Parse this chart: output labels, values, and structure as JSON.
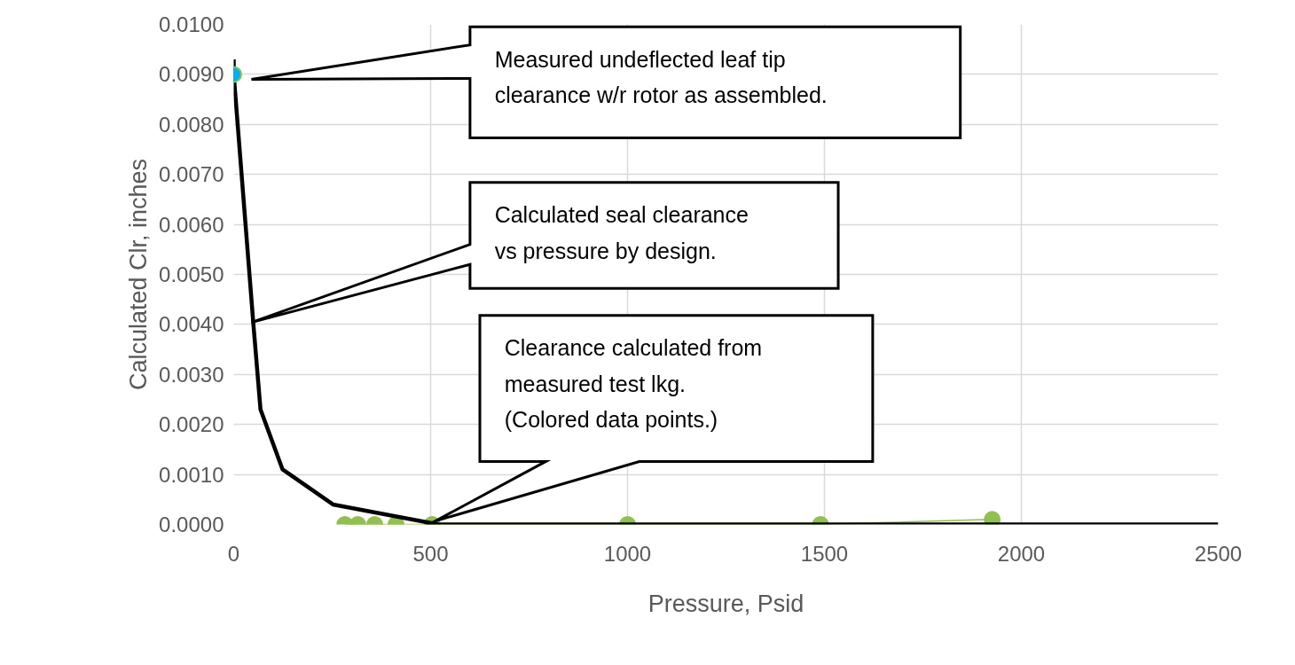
{
  "chart_data": {
    "type": "line",
    "xlabel": "Pressure, Psid",
    "ylabel": "Calculated Clr, inches",
    "xlim": [
      0,
      2500
    ],
    "xticks": [
      0,
      500,
      1000,
      1500,
      2000,
      2500
    ],
    "ylim": [
      0,
      0.01
    ],
    "yticks": [
      {
        "value": 0,
        "label": "0.0000"
      },
      {
        "value": 0.001,
        "label": "0.0010"
      },
      {
        "value": 0.002,
        "label": "0.0020"
      },
      {
        "value": 0.003,
        "label": "0.0030"
      },
      {
        "value": 0.004,
        "label": "0.0040"
      },
      {
        "value": 0.005,
        "label": "0.0050"
      },
      {
        "value": 0.006,
        "label": "0.0060"
      },
      {
        "value": 0.007,
        "label": "0.0070"
      },
      {
        "value": 0.008,
        "label": "0.0080"
      },
      {
        "value": 0.009,
        "label": "0.0090"
      },
      {
        "value": 0.01,
        "label": "0.0100"
      }
    ],
    "grid": true,
    "series": [
      {
        "color": "#92c050",
        "marker": "circle",
        "x": [
          282,
          315,
          358,
          412,
          504,
          1000,
          1490,
          1926
        ],
        "values": [
          0.0,
          0.0,
          0.0,
          0.0,
          0.0,
          0.0,
          0.0,
          0.0001
        ]
      },
      {
        "color": "#000000",
        "marker": "none",
        "x": [
          0,
          0,
          50,
          68,
          124,
          252,
          520,
          2500
        ],
        "values": [
          0.0093,
          0.009,
          0.004,
          0.0023,
          0.0011,
          0.0004,
          0.0,
          0.0
        ]
      },
      {
        "type": "scatter",
        "color": "#00b0f0",
        "marker": "circle",
        "x": [
          0
        ],
        "values": [
          0.009
        ]
      }
    ],
    "annotations": [
      "Measured undeflected leaf tip clearance w/r rotor as assembled.",
      "Calculated seal clearance vs pressure by design.",
      "Clearance calculated from measured test lkg. (Colored data points.)"
    ]
  }
}
